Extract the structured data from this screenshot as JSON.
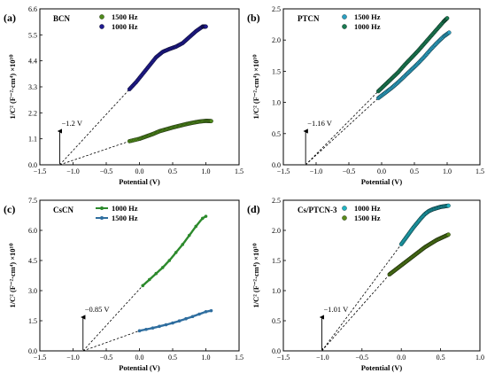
{
  "figure": {
    "panels": [
      {
        "label": "(a)",
        "name": "BCN"
      },
      {
        "label": "(b)",
        "name": "PTCN"
      },
      {
        "label": "(c)",
        "name": "CsCN"
      },
      {
        "label": "(d)",
        "name": "Cs/PTCN-3"
      }
    ]
  },
  "colors": {
    "green": "#4f8a1c",
    "navy": "#1f1b8f",
    "teal": "#2c9fc0",
    "darkgreen": "#1a7a52",
    "dkgreen2": "#2c8a2c",
    "steelblue": "#2f6e9f",
    "cyan": "#22b4c2",
    "olive": "#5a8a1c"
  },
  "chart_data": [
    {
      "type": "scatter",
      "panel": "(a)",
      "title": "BCN",
      "xlabel": "Potential (V)",
      "ylabel": "1/C² (F⁻²·cm⁴) ×10¹⁰",
      "xlim": [
        -1.5,
        1.5
      ],
      "ylim": [
        0,
        6.6
      ],
      "xticks": [
        "-1.5",
        "-1.0",
        "-0.5",
        "0.0",
        "0.5",
        "1.0",
        "1.5"
      ],
      "yticks": [
        "0.0",
        "1.1",
        "2.2",
        "3.3",
        "4.4",
        "5.5",
        "6.6"
      ],
      "annotation": "−1.2 V",
      "annotation_x": -1.2,
      "series": [
        {
          "name": "1500 Hz",
          "color": "#4f8a1c",
          "marker": "filled",
          "x": [
            -0.15,
            0.0,
            0.1,
            0.2,
            0.3,
            0.4,
            0.5,
            0.6,
            0.7,
            0.8,
            0.9,
            1.0,
            1.08
          ],
          "y": [
            1.0,
            1.1,
            1.2,
            1.3,
            1.42,
            1.5,
            1.58,
            1.65,
            1.72,
            1.78,
            1.83,
            1.86,
            1.85
          ],
          "fit_to": -1.2
        },
        {
          "name": "1000 Hz",
          "color": "#1f1b8f",
          "marker": "filled",
          "x": [
            -0.15,
            -0.05,
            0.05,
            0.15,
            0.25,
            0.35,
            0.45,
            0.55,
            0.65,
            0.75,
            0.85,
            0.95,
            1.0
          ],
          "y": [
            3.2,
            3.5,
            3.85,
            4.2,
            4.55,
            4.78,
            4.9,
            5.0,
            5.15,
            5.4,
            5.65,
            5.85,
            5.85
          ],
          "fit_to": -1.2
        }
      ]
    },
    {
      "type": "scatter",
      "panel": "(b)",
      "title": "PTCN",
      "xlabel": "Potential (V)",
      "ylabel": "1/C² (F⁻²·cm⁴) ×10¹⁰",
      "xlim": [
        -1.5,
        1.5
      ],
      "ylim": [
        0,
        2.5
      ],
      "xticks": [
        "-1.5",
        "-1.0",
        "-0.5",
        "0.0",
        "0.5",
        "1.0",
        "1.5"
      ],
      "yticks": [
        "0.0",
        "0.5",
        "1.0",
        "1.5",
        "2.0",
        "2.5"
      ],
      "annotation": "−1.16 V",
      "annotation_x": -1.16,
      "series": [
        {
          "name": "1500 Hz",
          "color": "#2c9fc0",
          "marker": "filled",
          "x": [
            -0.05,
            0.05,
            0.15,
            0.25,
            0.35,
            0.45,
            0.55,
            0.65,
            0.75,
            0.85,
            0.95,
            1.03
          ],
          "y": [
            1.07,
            1.15,
            1.23,
            1.32,
            1.42,
            1.52,
            1.62,
            1.73,
            1.85,
            1.96,
            2.06,
            2.12
          ],
          "fit_to": -1.16
        },
        {
          "name": "1000 Hz",
          "color": "#1a7a52",
          "marker": "filled",
          "x": [
            -0.05,
            0.05,
            0.15,
            0.25,
            0.35,
            0.45,
            0.55,
            0.65,
            0.75,
            0.85,
            0.95,
            1.0
          ],
          "y": [
            1.18,
            1.28,
            1.38,
            1.48,
            1.6,
            1.71,
            1.82,
            1.94,
            2.06,
            2.18,
            2.3,
            2.35
          ],
          "fit_to": -1.16
        }
      ]
    },
    {
      "type": "line",
      "panel": "(c)",
      "title": "CsCN",
      "xlabel": "Potential (V)",
      "ylabel": "1/C² (F⁻²·cm⁴) ×10¹⁰",
      "xlim": [
        -1.5,
        1.5
      ],
      "ylim": [
        0,
        7.5
      ],
      "xticks": [
        "-1.5",
        "-1.0",
        "-0.5",
        "0.0",
        "0.5",
        "1.0",
        "1.5"
      ],
      "yticks": [
        "0.0",
        "1.5",
        "3.0",
        "4.5",
        "6.0",
        "7.5"
      ],
      "annotation": "−0.85 V",
      "annotation_x": -0.85,
      "series": [
        {
          "name": "1000 Hz",
          "color": "#2c8a2c",
          "marker": "line",
          "x": [
            0.05,
            0.15,
            0.25,
            0.35,
            0.45,
            0.55,
            0.65,
            0.75,
            0.85,
            0.95,
            1.0
          ],
          "y": [
            3.25,
            3.55,
            3.85,
            4.15,
            4.5,
            4.9,
            5.3,
            5.75,
            6.2,
            6.6,
            6.7
          ],
          "fit_to": -0.85
        },
        {
          "name": "1500 Hz",
          "color": "#2f6e9f",
          "marker": "line",
          "x": [
            0.0,
            0.1,
            0.2,
            0.3,
            0.4,
            0.5,
            0.6,
            0.7,
            0.8,
            0.9,
            1.0,
            1.08
          ],
          "y": [
            1.0,
            1.07,
            1.14,
            1.22,
            1.3,
            1.39,
            1.49,
            1.6,
            1.71,
            1.83,
            1.95,
            2.0
          ],
          "fit_to": -0.85
        }
      ]
    },
    {
      "type": "scatter",
      "panel": "(d)",
      "title": "Cs/PTCN-3",
      "xlabel": "Potential (V)",
      "ylabel": "1/C² (F⁻²·cm⁴) ×10¹⁰",
      "xlim": [
        -1.5,
        1.0
      ],
      "ylim": [
        0,
        2.5
      ],
      "xticks": [
        "-1.5",
        "-1.0",
        "-0.5",
        "0.0",
        "0.5",
        "1.0"
      ],
      "yticks": [
        "0.0",
        "0.5",
        "1.0",
        "1.5",
        "2.0",
        "2.5"
      ],
      "annotation": "−1.01 V",
      "annotation_x": -1.01,
      "series": [
        {
          "name": "1000 Hz",
          "color": "#22b4c2",
          "marker": "filled",
          "x": [
            0.0,
            0.05,
            0.1,
            0.15,
            0.2,
            0.25,
            0.3,
            0.35,
            0.4,
            0.45,
            0.5,
            0.55,
            0.6
          ],
          "y": [
            1.77,
            1.86,
            1.95,
            2.04,
            2.12,
            2.2,
            2.27,
            2.32,
            2.35,
            2.37,
            2.39,
            2.4,
            2.41
          ],
          "fit_to": -1.01
        },
        {
          "name": "1500 Hz",
          "color": "#5a8a1c",
          "marker": "filled",
          "x": [
            -0.15,
            -0.1,
            -0.05,
            0.0,
            0.05,
            0.1,
            0.15,
            0.2,
            0.25,
            0.3,
            0.35,
            0.4,
            0.45,
            0.5,
            0.55,
            0.6
          ],
          "y": [
            1.27,
            1.32,
            1.37,
            1.42,
            1.47,
            1.52,
            1.57,
            1.62,
            1.67,
            1.72,
            1.76,
            1.8,
            1.84,
            1.87,
            1.9,
            1.93
          ],
          "fit_to": -1.01
        }
      ]
    }
  ]
}
